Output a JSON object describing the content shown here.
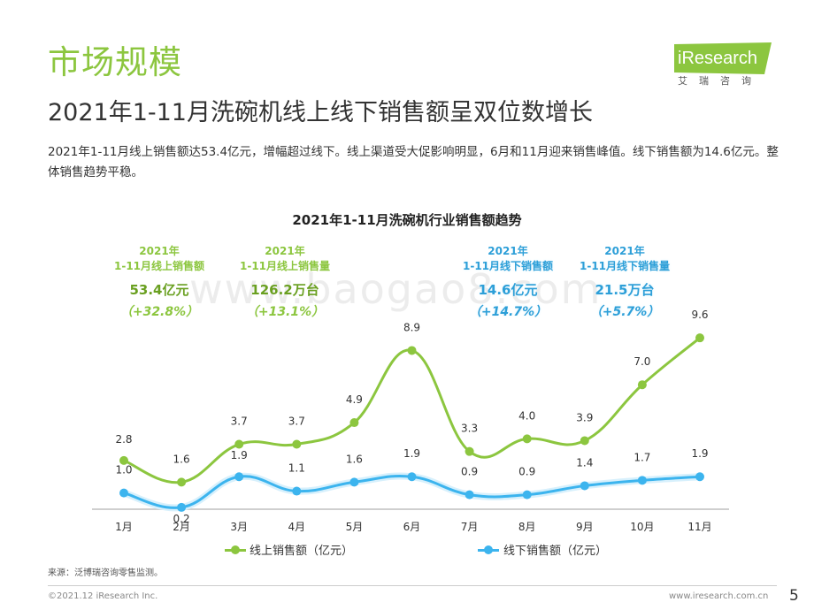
{
  "header": {
    "title": "市场规模",
    "subtitle": "2021年1-11月洗碗机线上线下销售额呈双位数增长"
  },
  "logo": {
    "brand": "iResearch",
    "cn": "艾瑞咨询",
    "color": "#8cc63f"
  },
  "summary": "2021年1-11月线上销售额达53.4亿元，增幅超过线下。线上渠道受大促影响明显，6月和11月迎来销售峰值。线下销售额为14.6亿元。整体销售趋势平稳。",
  "stats": [
    {
      "line1": "2021年",
      "line2": "1-11月线上销售额",
      "value": "53.4亿元",
      "change": "（+32.8%）"
    },
    {
      "line1": "2021年",
      "line2": "1-11月线上销售量",
      "value": "126.2万台",
      "change": "（+13.1%）"
    },
    {
      "line1": "2021年",
      "line2": "1-11月线下销售额",
      "value": "14.6亿元",
      "change": "（+14.7%）"
    },
    {
      "line1": "2021年",
      "line2": "1-11月线下销售量",
      "value": "21.5万台",
      "change": "（+5.7%）"
    }
  ],
  "watermark": "www.baogao8.com",
  "chart_data": {
    "type": "line",
    "title": "2021年1-11月洗碗机行业销售额趋势",
    "categories": [
      "1月",
      "2月",
      "3月",
      "4月",
      "5月",
      "6月",
      "7月",
      "8月",
      "9月",
      "10月",
      "11月"
    ],
    "series": [
      {
        "name": "线上销售额（亿元）",
        "color": "#8cc63f",
        "values": [
          2.8,
          1.6,
          3.7,
          3.7,
          4.9,
          8.9,
          3.3,
          4.0,
          3.9,
          7.0,
          9.6
        ]
      },
      {
        "name": "线下销售额（亿元）",
        "color": "#3cb4ee",
        "values": [
          1.0,
          0.2,
          1.9,
          1.1,
          1.6,
          1.9,
          0.9,
          0.9,
          1.4,
          1.7,
          1.9
        ]
      }
    ],
    "labels": {
      "online": [
        "2.8",
        "1.6",
        "3.7",
        "3.7",
        "4.9",
        "8.9",
        "3.3",
        "4.0",
        "3.9",
        "7.0",
        "9.6"
      ],
      "offline": [
        "1.0",
        "0.2",
        "1.9",
        "1.1",
        "1.6",
        "1.9",
        "0.9",
        "0.9",
        "1.4",
        "1.7",
        "1.9"
      ]
    },
    "ylim": [
      0,
      10
    ],
    "grid": false,
    "legend_position": "bottom"
  },
  "source": "来源：泛博瑞咨询零售监测。",
  "footer": {
    "copyright": "©2021.12 iResearch Inc.",
    "url": "www.iresearch.com.cn",
    "page": "5"
  }
}
